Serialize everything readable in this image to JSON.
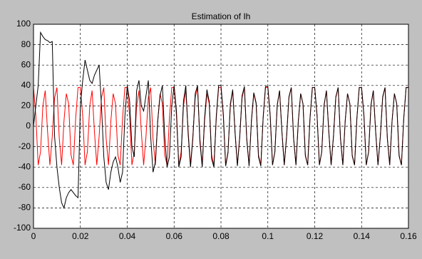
{
  "chart_data": {
    "type": "line",
    "title": "Estimation of Ih",
    "x": [
      0,
      0.001,
      0.002,
      0.003,
      0.004,
      0.005,
      0.006,
      0.007,
      0.008,
      0.009,
      0.01,
      0.011,
      0.012,
      0.013,
      0.014,
      0.015,
      0.016,
      0.017,
      0.018,
      0.019,
      0.02,
      0.021,
      0.022,
      0.023,
      0.024,
      0.025,
      0.026,
      0.027,
      0.028,
      0.029,
      0.03,
      0.031,
      0.032,
      0.033,
      0.034,
      0.035,
      0.036,
      0.037,
      0.038,
      0.039,
      0.04,
      0.041,
      0.042,
      0.043,
      0.044,
      0.045,
      0.046,
      0.047,
      0.048,
      0.049,
      0.05,
      0.051,
      0.052,
      0.053,
      0.054,
      0.055,
      0.056,
      0.057,
      0.058,
      0.059,
      0.06,
      0.061,
      0.062,
      0.063,
      0.064,
      0.065,
      0.066,
      0.067,
      0.068,
      0.069,
      0.07,
      0.071,
      0.072,
      0.073,
      0.074,
      0.075,
      0.076,
      0.077,
      0.078,
      0.079,
      0.08,
      0.081,
      0.082,
      0.083,
      0.084,
      0.085,
      0.086,
      0.087,
      0.088,
      0.089,
      0.09,
      0.091,
      0.092,
      0.093,
      0.094,
      0.095,
      0.096,
      0.097,
      0.098,
      0.099,
      0.1,
      0.101,
      0.102,
      0.103,
      0.104,
      0.105,
      0.106,
      0.107,
      0.108,
      0.109,
      0.11,
      0.111,
      0.112,
      0.113,
      0.114,
      0.115,
      0.116,
      0.117,
      0.118,
      0.119,
      0.12,
      0.121,
      0.122,
      0.123,
      0.124,
      0.125,
      0.126,
      0.127,
      0.128,
      0.129,
      0.13,
      0.131,
      0.132,
      0.133,
      0.134,
      0.135,
      0.136,
      0.137,
      0.138,
      0.139,
      0.14,
      0.141,
      0.142,
      0.143,
      0.144,
      0.145,
      0.146,
      0.147,
      0.148,
      0.149,
      0.15,
      0.151,
      0.152,
      0.153,
      0.154,
      0.155,
      0.156,
      0.157,
      0.158,
      0.159,
      0.16
    ],
    "series": [
      {
        "color": "#ff0000",
        "values": [
          38,
          10,
          -38,
          -25,
          20,
          35,
          -5,
          -38,
          -10,
          28,
          38,
          -12,
          -38,
          5,
          32,
          22,
          -28,
          -38,
          8,
          38,
          38,
          10,
          -38,
          -25,
          20,
          35,
          -5,
          -38,
          -10,
          28,
          38,
          -12,
          -38,
          5,
          32,
          22,
          -28,
          -38,
          8,
          38,
          38,
          10,
          -38,
          -25,
          20,
          35,
          -5,
          -38,
          -10,
          28,
          38,
          -12,
          -38,
          5,
          32,
          22,
          -28,
          -38,
          8,
          38,
          38,
          10,
          -38,
          -25,
          20,
          35,
          -5,
          -38,
          -10,
          28,
          38,
          -12,
          -38,
          5,
          32,
          22,
          -28,
          -38,
          8,
          38,
          38,
          10,
          -38,
          -25,
          20,
          35,
          -5,
          -38,
          -10,
          28,
          38,
          -12,
          -38,
          5,
          32,
          22,
          -28,
          -38,
          8,
          38,
          38,
          10,
          -38,
          -25,
          20,
          35,
          -5,
          -38,
          -10,
          28,
          38,
          -12,
          -38,
          5,
          32,
          22,
          -28,
          -38,
          8,
          38,
          38,
          10,
          -38,
          -25,
          20,
          35,
          -5,
          -38,
          -10,
          28,
          38,
          -12,
          -38,
          5,
          32,
          22,
          -28,
          -38,
          8,
          38,
          38,
          10,
          -38,
          -25,
          20,
          35,
          -5,
          -38,
          -10,
          28,
          38,
          -12,
          -38,
          5,
          32,
          22,
          -28,
          -38,
          8,
          38,
          38
        ]
      },
      {
        "color": "#000000",
        "values": [
          0,
          20,
          40,
          92,
          88,
          85,
          84,
          82,
          83,
          -10,
          -40,
          -60,
          -75,
          -80,
          -70,
          -65,
          -62,
          -65,
          -68,
          -70,
          20,
          45,
          65,
          55,
          45,
          42,
          50,
          55,
          60,
          20,
          -30,
          -55,
          -62,
          -45,
          -35,
          -30,
          -40,
          -55,
          -45,
          10,
          40,
          25,
          -20,
          -30,
          35,
          45,
          20,
          15,
          30,
          45,
          -10,
          -45,
          -35,
          5,
          30,
          40,
          -10,
          -40,
          -30,
          20,
          40,
          15,
          -40,
          -30,
          25,
          40,
          -8,
          -40,
          -12,
          32,
          40,
          -15,
          -40,
          8,
          36,
          24,
          -32,
          -40,
          10,
          40,
          40,
          12,
          -39,
          -26,
          22,
          36,
          -6,
          -39,
          -11,
          30,
          39,
          -13,
          -39,
          6,
          33,
          23,
          -30,
          -39,
          9,
          39,
          39,
          11,
          -38,
          -25,
          21,
          35,
          -5,
          -38,
          -10,
          29,
          38,
          -12,
          -38,
          5,
          32,
          22,
          -29,
          -38,
          8,
          38,
          38,
          11,
          -38,
          -25,
          21,
          35,
          -5,
          -38,
          -10,
          29,
          38,
          -12,
          -38,
          5,
          32,
          22,
          -29,
          -38,
          8,
          38,
          38,
          11,
          -38,
          -25,
          21,
          35,
          -5,
          -38,
          -10,
          29,
          38,
          -12,
          -38,
          5,
          32,
          22,
          -29,
          -38,
          8,
          38,
          38
        ]
      }
    ],
    "xlim": [
      0,
      0.16
    ],
    "xticks": [
      0,
      0.02,
      0.04,
      0.06,
      0.08,
      0.1,
      0.12,
      0.14,
      0.16
    ],
    "ylim": [
      -100,
      100
    ],
    "yticks": [
      -100,
      -80,
      -60,
      -40,
      -20,
      0,
      20,
      40,
      60,
      80,
      100
    ],
    "grid": true
  }
}
